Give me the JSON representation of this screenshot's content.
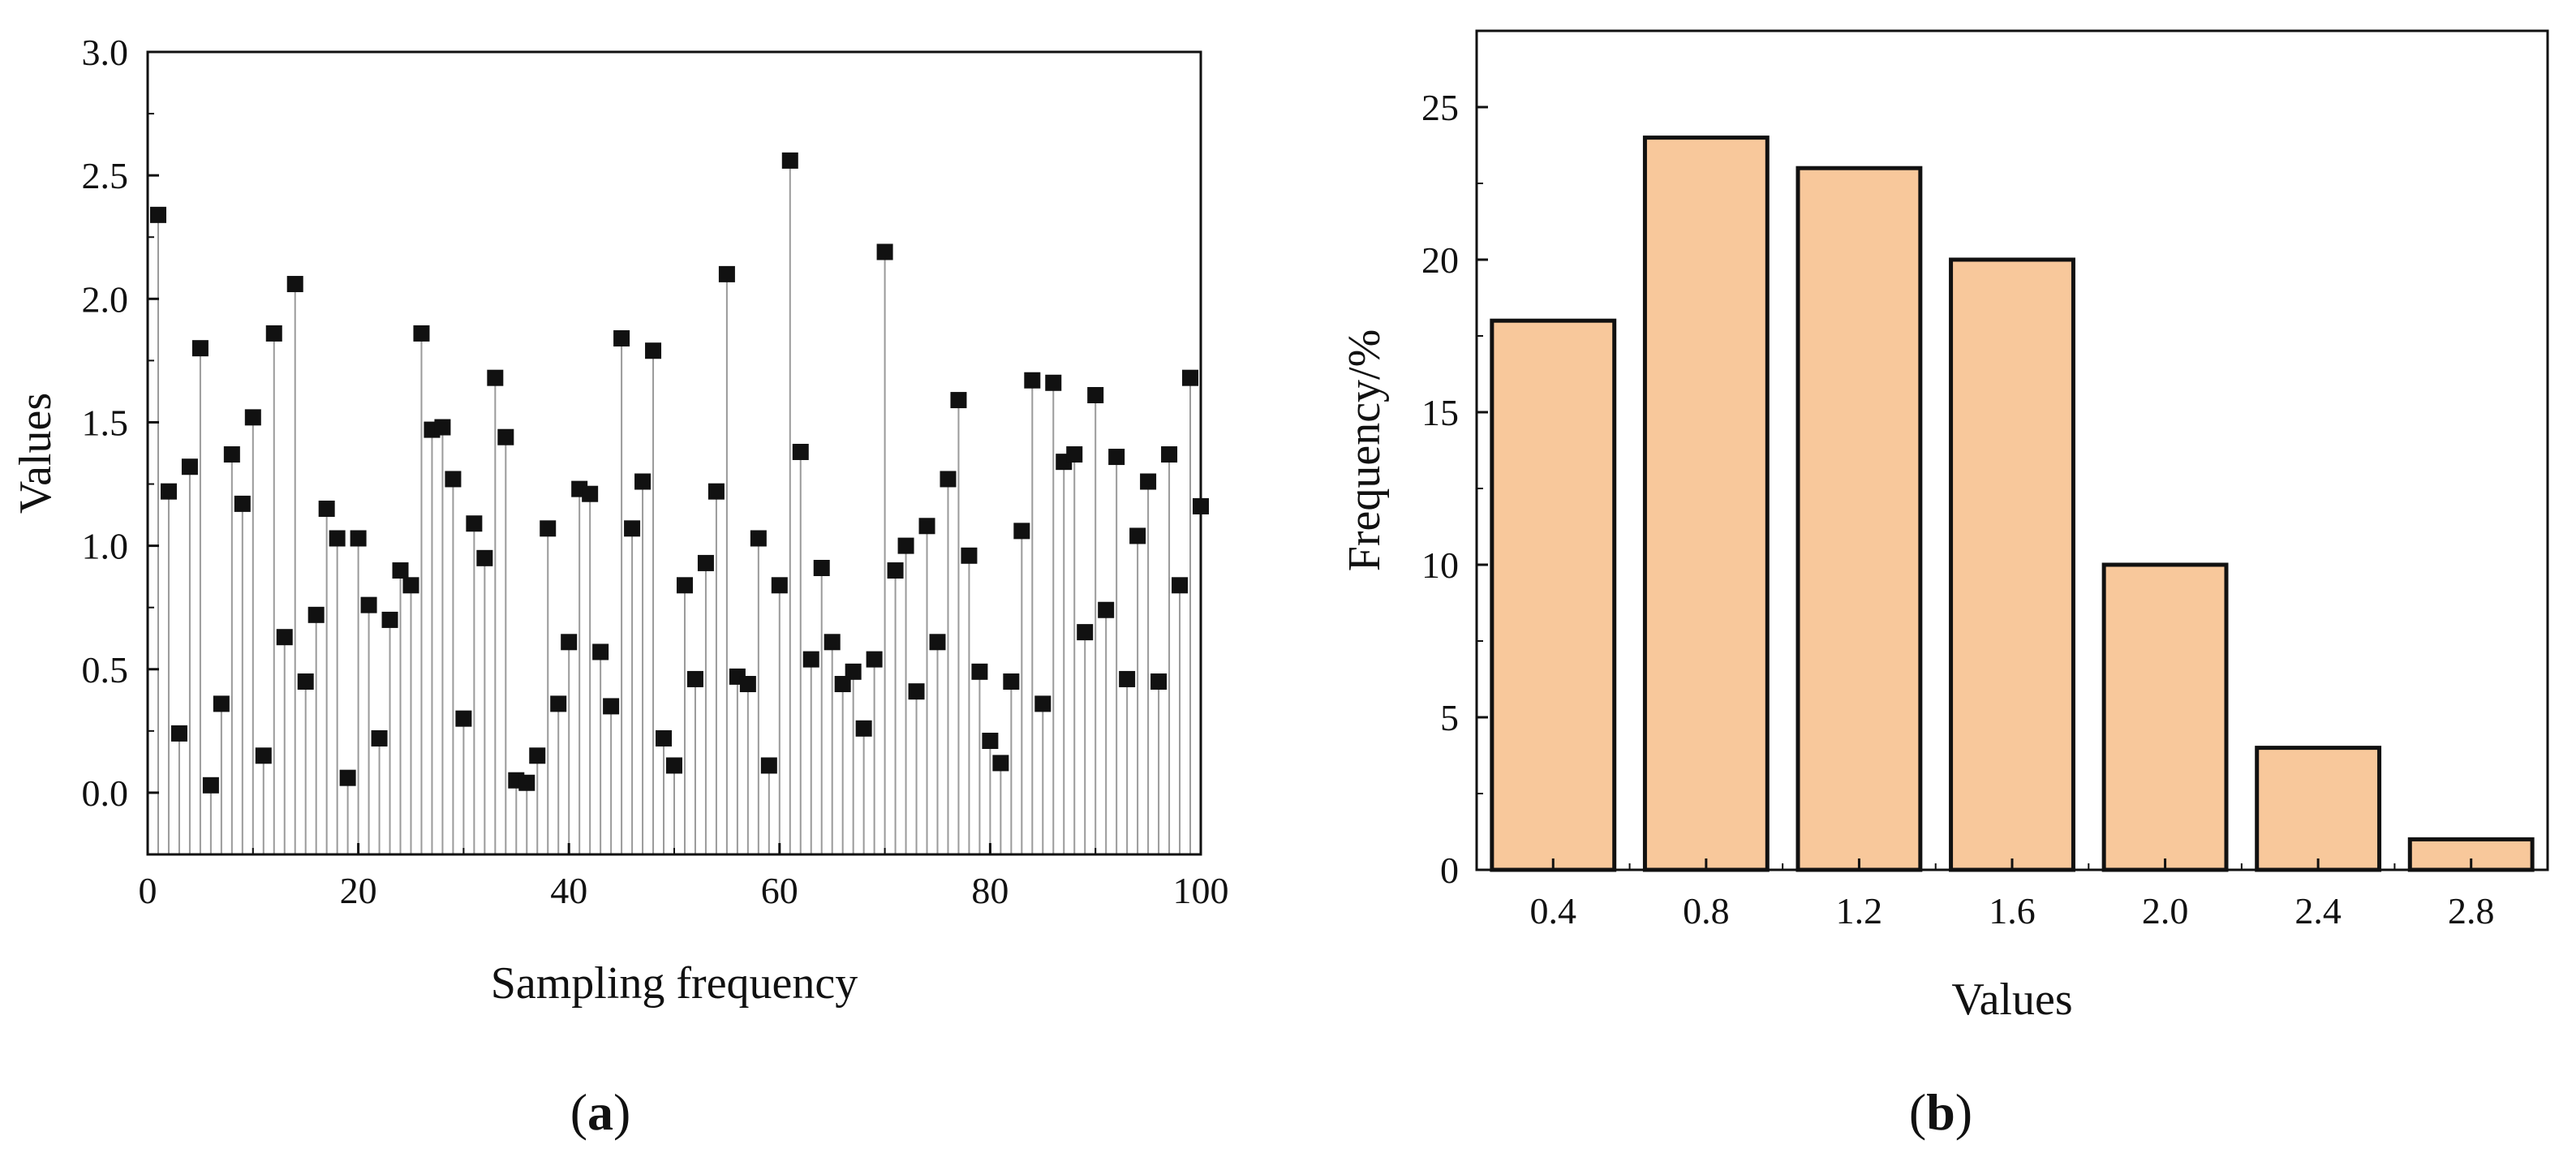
{
  "figure": {
    "label_a_letter": "a",
    "label_b_letter": "b"
  },
  "chart_data": [
    {
      "type": "scatter",
      "style": "stem",
      "marker": "square",
      "xlabel": "Sampling frequency",
      "ylabel": "Values",
      "xlim": [
        0,
        100
      ],
      "ylim": [
        -0.25,
        3.0
      ],
      "x_ticks": [
        0,
        20,
        40,
        60,
        80,
        100
      ],
      "y_ticks": [
        0.0,
        0.5,
        1.0,
        1.5,
        2.0,
        2.5,
        3.0
      ],
      "x_tick_labels": [
        "0",
        "20",
        "40",
        "60",
        "80",
        "100"
      ],
      "y_tick_labels": [
        "0.0",
        "0.5",
        "1.0",
        "1.5",
        "2.0",
        "2.5",
        "3.0"
      ],
      "grid": false,
      "colors": {
        "marker": "#111111",
        "stem": "#9a9a9a"
      },
      "x": [
        1,
        2,
        3,
        4,
        5,
        6,
        7,
        8,
        9,
        10,
        11,
        12,
        13,
        14,
        15,
        16,
        17,
        18,
        19,
        20,
        21,
        22,
        23,
        24,
        25,
        26,
        27,
        28,
        29,
        30,
        31,
        32,
        33,
        34,
        35,
        36,
        37,
        38,
        39,
        40,
        41,
        42,
        43,
        44,
        45,
        46,
        47,
        48,
        49,
        50,
        51,
        52,
        53,
        54,
        55,
        56,
        57,
        58,
        59,
        60,
        61,
        62,
        63,
        64,
        65,
        66,
        67,
        68,
        69,
        70,
        71,
        72,
        73,
        74,
        75,
        76,
        77,
        78,
        79,
        80,
        81,
        82,
        83,
        84,
        85,
        86,
        87,
        88,
        89,
        90,
        91,
        92,
        93,
        94,
        95,
        96,
        97,
        98,
        99,
        100
      ],
      "values": [
        2.34,
        1.22,
        0.24,
        1.32,
        1.8,
        0.03,
        0.36,
        1.37,
        1.17,
        1.52,
        0.15,
        1.86,
        0.63,
        2.06,
        0.45,
        0.72,
        1.15,
        1.03,
        0.06,
        1.03,
        0.76,
        0.22,
        0.7,
        0.9,
        0.84,
        1.86,
        1.47,
        1.48,
        1.27,
        0.3,
        1.09,
        0.95,
        1.68,
        1.44,
        0.05,
        0.04,
        0.15,
        1.07,
        0.36,
        0.61,
        1.23,
        1.21,
        0.57,
        0.35,
        1.84,
        1.07,
        1.26,
        1.79,
        0.22,
        0.11,
        0.84,
        0.46,
        0.93,
        1.22,
        2.1,
        0.47,
        0.44,
        1.03,
        0.11,
        0.84,
        2.56,
        1.38,
        0.54,
        0.91,
        0.61,
        0.44,
        0.49,
        0.26,
        0.54,
        2.19,
        0.9,
        1.0,
        0.41,
        1.08,
        0.61,
        1.27,
        1.59,
        0.96,
        0.49,
        0.21,
        0.12,
        0.45,
        1.06,
        1.67,
        0.36,
        1.66,
        1.34,
        1.37,
        0.65,
        1.61,
        0.74,
        1.36,
        0.46,
        1.04,
        1.26,
        0.45,
        1.37,
        0.84,
        1.68,
        1.16
      ]
    },
    {
      "type": "bar",
      "xlabel": "Values",
      "ylabel": "Frequency/%",
      "categories": [
        "0.4",
        "0.8",
        "1.2",
        "1.6",
        "2.0",
        "2.4",
        "2.8"
      ],
      "values": [
        18,
        24,
        23,
        20,
        10,
        4,
        1
      ],
      "ylim": [
        0,
        27.5
      ],
      "y_ticks": [
        0,
        5,
        10,
        15,
        20,
        25
      ],
      "y_tick_labels": [
        "0",
        "5",
        "10",
        "15",
        "20",
        "25"
      ],
      "grid": false,
      "colors": {
        "bar_fill": "#f8c89b",
        "bar_edge": "#111111"
      }
    }
  ]
}
